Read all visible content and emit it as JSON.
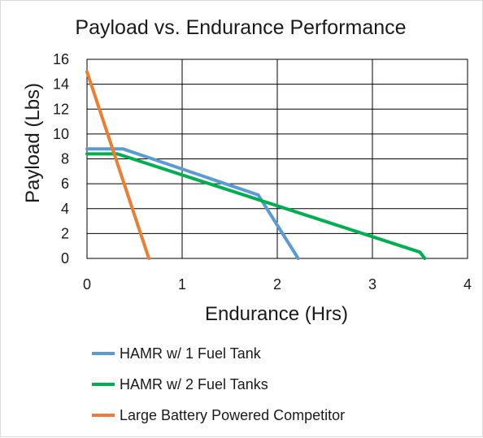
{
  "chart_data": {
    "type": "line",
    "title": "Payload vs. Endurance Performance",
    "xlabel": "Endurance (Hrs)",
    "ylabel": "Payload (Lbs)",
    "xlim": [
      0,
      4
    ],
    "ylim": [
      0,
      16
    ],
    "xticks": [
      0,
      1,
      2,
      3,
      4
    ],
    "yticks": [
      0,
      2,
      4,
      6,
      8,
      10,
      12,
      14,
      16
    ],
    "grid": true,
    "legend": "bottom",
    "series": [
      {
        "name": "HAMR w/ 1 Fuel Tank",
        "color": "#5b9bd5",
        "x": [
          0,
          0.38,
          1.8,
          2.22
        ],
        "y": [
          8.8,
          8.8,
          5.1,
          0
        ]
      },
      {
        "name": "HAMR w/ 2 Fuel Tanks",
        "color": "#00b050",
        "x": [
          0,
          0.32,
          3.5,
          3.55
        ],
        "y": [
          8.4,
          8.4,
          0.5,
          0
        ]
      },
      {
        "name": "Large Battery Powered Competitor",
        "color": "#ed7d31",
        "x": [
          0,
          0.65
        ],
        "y": [
          15,
          0
        ]
      }
    ]
  }
}
